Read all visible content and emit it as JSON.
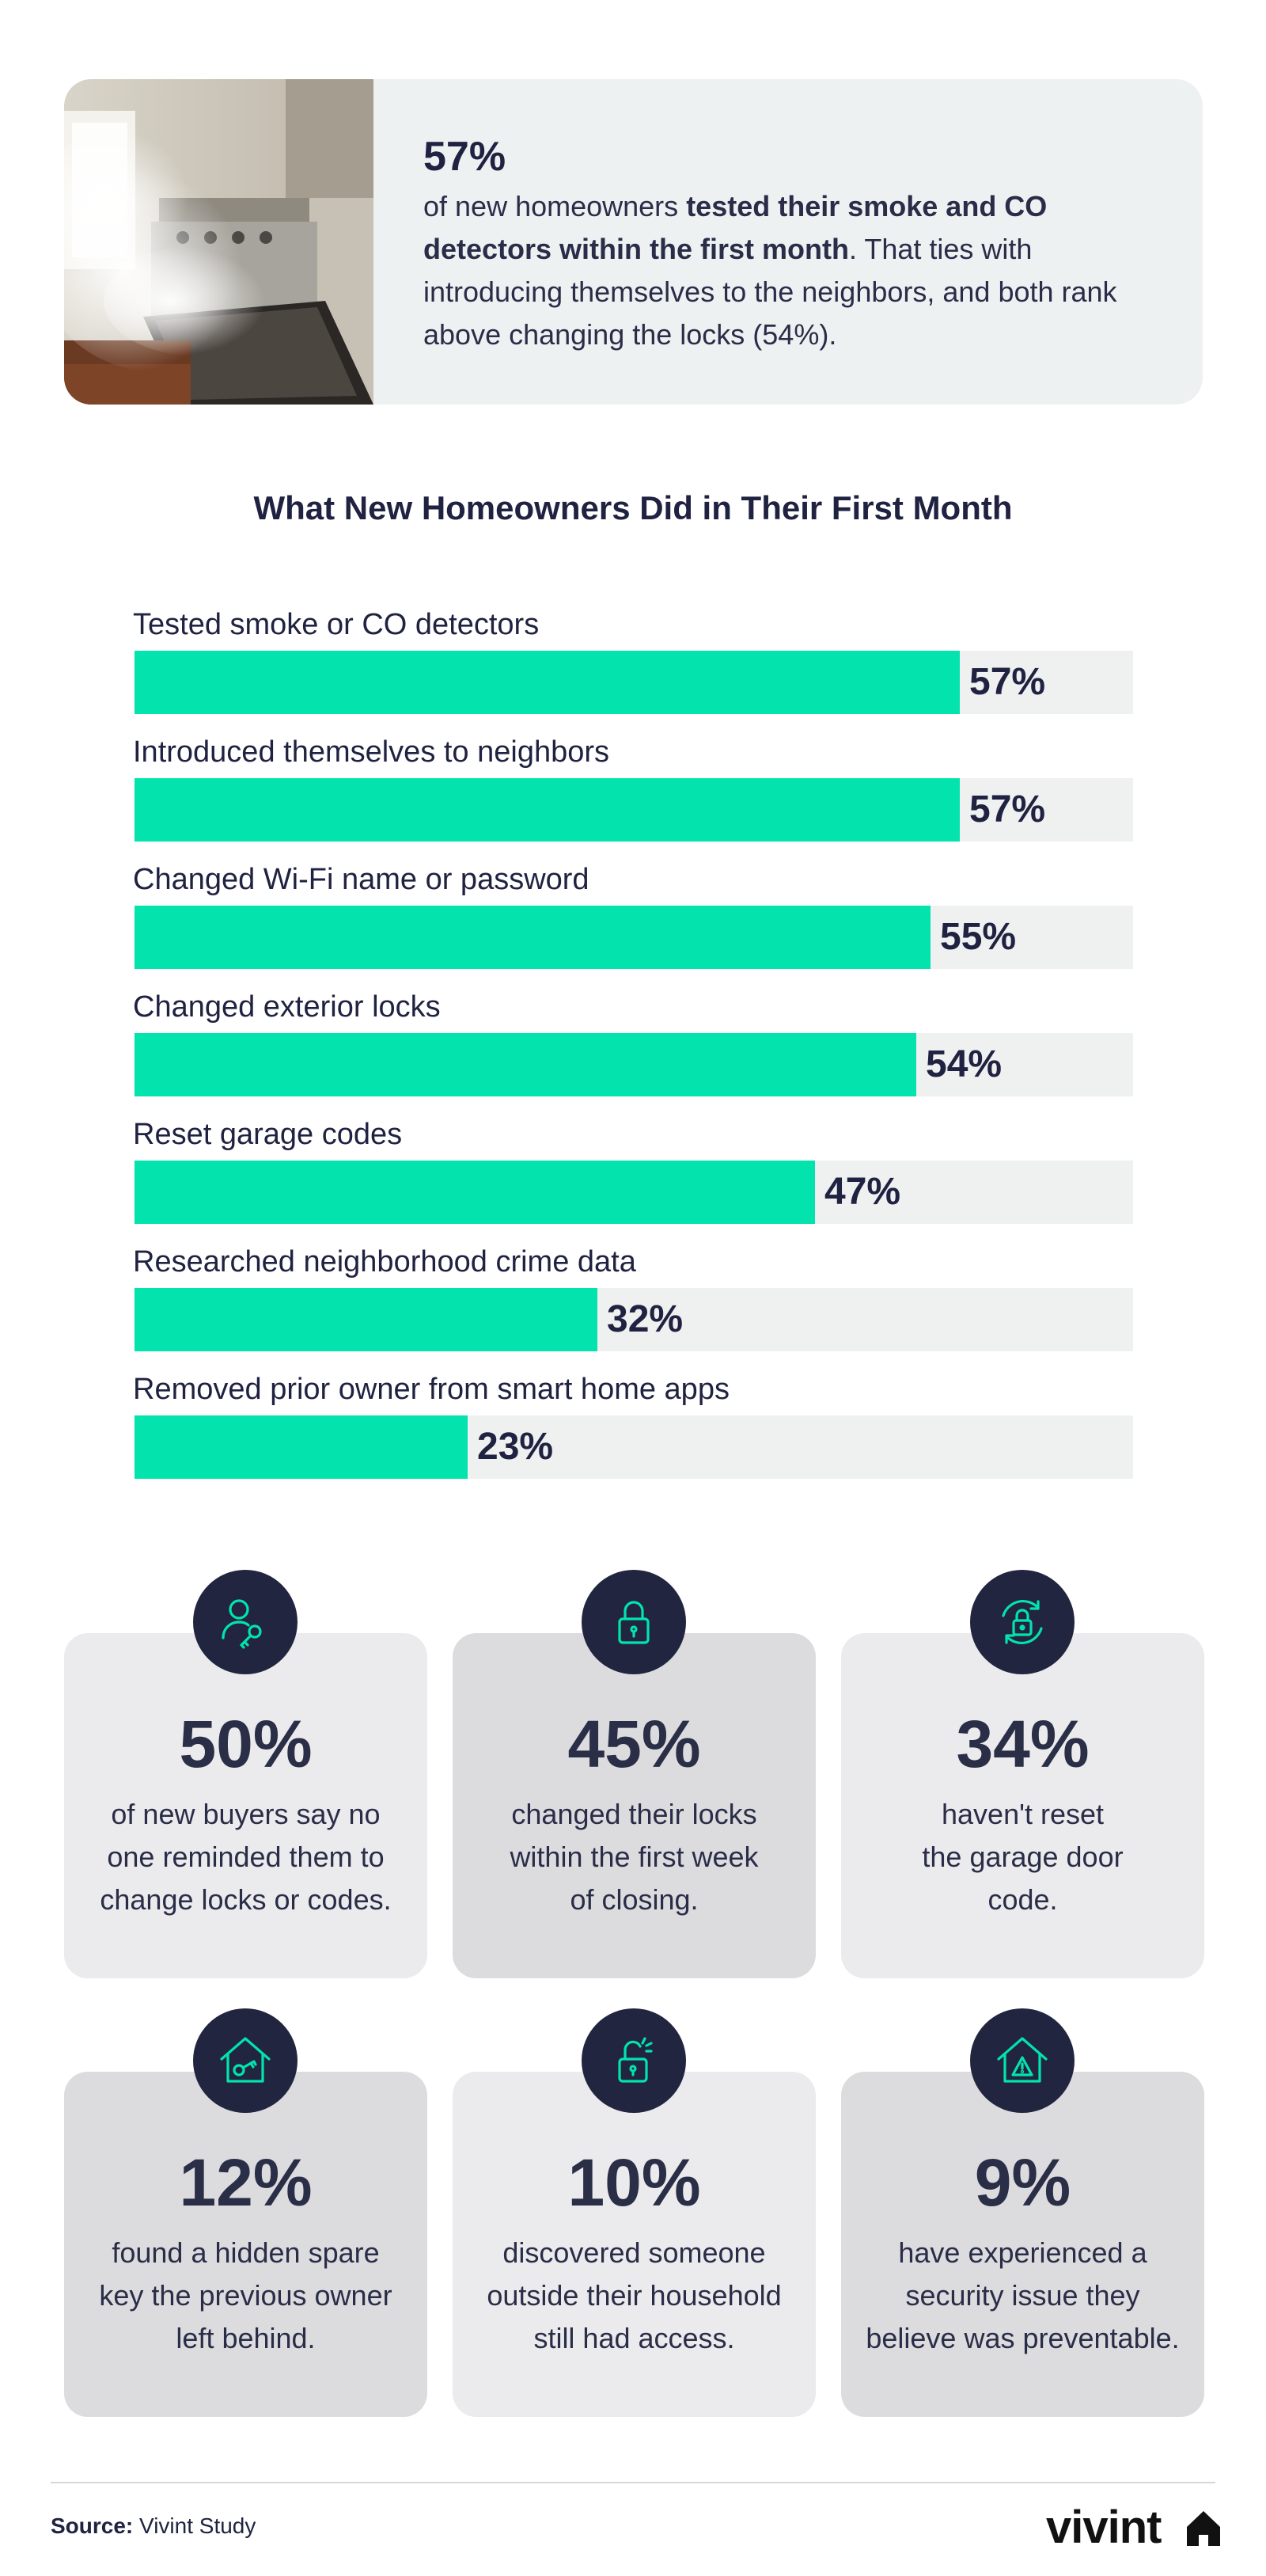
{
  "intro": {
    "stat": "57%",
    "text_before": "of new homeowners ",
    "text_bold": "tested their smoke and CO detectors within the first month",
    "text_after": ". That ties with introducing themselves to the neighbors, and both rank above changing the locks (54%)."
  },
  "chart_data": {
    "type": "bar",
    "orientation": "horizontal",
    "title": "What New Homeowners Did in Their First Month",
    "categories": [
      "Tested smoke or CO detectors",
      "Introduced themselves to neighbors",
      "Changed Wi-Fi name or password",
      "Changed exterior locks",
      "Reset garage codes",
      "Researched neighborhood crime data",
      "Removed prior owner from smart home apps"
    ],
    "values": [
      57,
      57,
      55,
      54,
      47,
      32,
      23
    ],
    "value_labels": [
      "57%",
      "57%",
      "55%",
      "54%",
      "47%",
      "32%",
      "23%"
    ],
    "xlim": [
      0,
      69
    ],
    "bar_color": "#02e3ad",
    "track_color": "#eff0f0",
    "grid": false
  },
  "stats": [
    {
      "value": "50%",
      "icon": "person-key-icon",
      "lines": [
        "of new buyers say no",
        "one reminded them to",
        "change locks or codes."
      ]
    },
    {
      "value": "45%",
      "icon": "padlock-icon",
      "lines": [
        "changed their locks",
        "within the first week",
        "of closing."
      ]
    },
    {
      "value": "34%",
      "icon": "padlock-refresh-icon",
      "lines": [
        "haven't reset",
        "the garage door",
        "code."
      ]
    },
    {
      "value": "12%",
      "icon": "house-key-icon",
      "lines": [
        "found a hidden spare",
        "key the previous owner",
        "left behind."
      ]
    },
    {
      "value": "10%",
      "icon": "unlocked-padlock-icon",
      "lines": [
        "discovered someone",
        "outside their household",
        "still had access."
      ]
    },
    {
      "value": "9%",
      "icon": "house-warning-icon",
      "lines": [
        "have experienced a",
        "security issue they",
        "believe was preventable."
      ]
    }
  ],
  "footer": {
    "source_label": "Source:",
    "source_text": " Vivint Study",
    "logo": "vivint"
  },
  "colors": {
    "accent": "#02e3ad",
    "navy": "#22253f",
    "card_light": "#ebebed",
    "card_dark": "#dcdcdf"
  }
}
